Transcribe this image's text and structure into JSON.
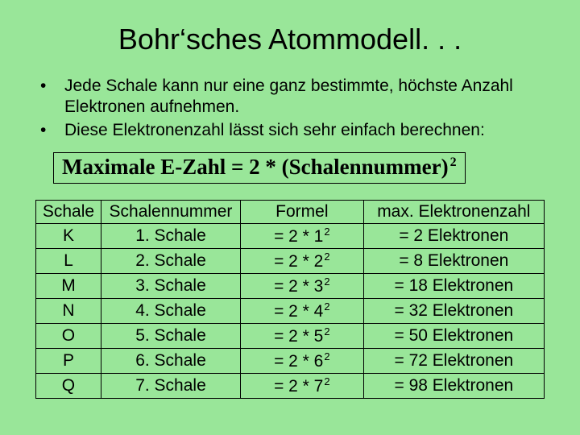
{
  "colors": {
    "background": "#99e699",
    "border": "#000000",
    "text": "#000000"
  },
  "title": "Bohr‘sches Atommodell. . .",
  "bullets": [
    "Jede Schale kann nur eine ganz bestimmte, höchste Anzahl Elektronen aufnehmen.",
    "Diese Elektronenzahl lässt sich sehr einfach berechnen:"
  ],
  "formula": {
    "prefix": "Maximale E-Zahl  =  2  *  (Schalennummer)",
    "exp": "2"
  },
  "table": {
    "headers": {
      "schale": "Schale",
      "nummer": "Schalennummer",
      "formel": "Formel",
      "max": "max. Elektronenzahl"
    },
    "rows": [
      {
        "schale": "K",
        "nummer": "1. Schale",
        "formel_base": "=  2  *  1",
        "formel_exp": "2",
        "max": "=  2 Elektronen"
      },
      {
        "schale": "L",
        "nummer": "2. Schale",
        "formel_base": "=  2  *  2",
        "formel_exp": "2",
        "max": "=  8 Elektronen"
      },
      {
        "schale": "M",
        "nummer": "3. Schale",
        "formel_base": "=  2  *  3",
        "formel_exp": "2",
        "max": "= 18 Elektronen"
      },
      {
        "schale": "N",
        "nummer": "4. Schale",
        "formel_base": "=  2  *  4",
        "formel_exp": "2",
        "max": "= 32 Elektronen"
      },
      {
        "schale": "O",
        "nummer": "5. Schale",
        "formel_base": "=  2  *  5",
        "formel_exp": "2",
        "max": "= 50 Elektronen"
      },
      {
        "schale": "P",
        "nummer": "6. Schale",
        "formel_base": "=  2  *  6",
        "formel_exp": "2",
        "max": "= 72 Elektronen"
      },
      {
        "schale": "Q",
        "nummer": "7. Schale",
        "formel_base": "=  2  *  7",
        "formel_exp": "2",
        "max": "= 98 Elektronen"
      }
    ]
  }
}
